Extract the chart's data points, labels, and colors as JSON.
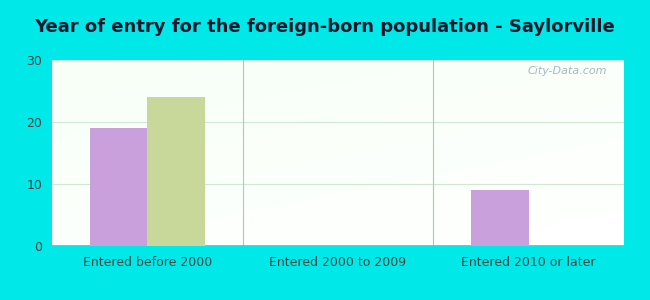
{
  "title": "Year of entry for the foreign-born population - Saylorville",
  "categories": [
    "Entered before 2000",
    "Entered 2000 to 2009",
    "Entered 2010 or later"
  ],
  "europe_values": [
    19,
    0,
    9
  ],
  "asia_values": [
    24,
    0,
    0
  ],
  "europe_color": "#c9a0dc",
  "asia_color": "#c8d89a",
  "ylim": [
    0,
    30
  ],
  "yticks": [
    0,
    10,
    20,
    30
  ],
  "bar_width": 0.3,
  "background_color": "#00e8e8",
  "title_fontsize": 13,
  "axis_label_fontsize": 9,
  "legend_fontsize": 10,
  "watermark": "City-Data.com"
}
